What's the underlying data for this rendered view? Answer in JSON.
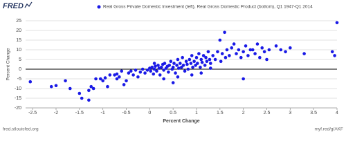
{
  "logo": "FRED",
  "source": "fred.stlouisfed.org",
  "link": "myf.red/g/AKF",
  "chart_data": {
    "type": "scatter",
    "x_label": "Percent Change",
    "y_label": "Percent Change",
    "xlim": [
      -2.65,
      4
    ],
    "xticks": [
      -2.5,
      -2,
      -1.5,
      -1,
      -0.5,
      0,
      0.5,
      1,
      1.5,
      2,
      2.5,
      3,
      3.5,
      4
    ],
    "ylim": [
      -20,
      25
    ],
    "yticks": [
      25,
      20,
      15,
      10,
      5,
      0,
      -5,
      -10,
      -15,
      -20
    ],
    "grid": true,
    "series": [
      {
        "name": "Real Gross Private Domestic Investment (left), Real Gross Domestic Product (bottom), Q1 1947-Q1 2014",
        "color": "#1a1ae6",
        "x": [
          -2.55,
          -2.1,
          -2.0,
          -1.7,
          -1.5,
          -1.45,
          -1.3,
          -1.3,
          -1.25,
          -1.2,
          -1.15,
          -1.05,
          -1.0,
          -0.95,
          -0.9,
          -0.85,
          -0.75,
          -0.7,
          -0.65,
          -0.6,
          -0.55,
          -0.5,
          -0.45,
          -0.4,
          -0.35,
          -0.3,
          -0.25,
          -0.2,
          -0.15,
          -0.1,
          -0.05,
          0,
          0.02,
          0.05,
          0.08,
          0.1,
          0.12,
          0.15,
          0.18,
          0.2,
          0.22,
          0.25,
          0.28,
          0.3,
          0.32,
          0.35,
          0.38,
          0.4,
          0.42,
          0.45,
          0.48,
          0.5,
          0.52,
          0.55,
          0.58,
          0.6,
          0.62,
          0.65,
          0.68,
          0.7,
          0.72,
          0.75,
          0.78,
          0.8,
          0.82,
          0.85,
          0.88,
          0.9,
          0.92,
          0.95,
          0.98,
          1.0,
          1.02,
          1.05,
          1.08,
          1.1,
          1.12,
          1.15,
          1.18,
          1.2,
          1.22,
          1.25,
          1.28,
          1.3,
          1.35,
          1.4,
          1.45,
          1.5,
          1.52,
          1.55,
          1.6,
          1.62,
          1.65,
          1.7,
          1.75,
          1.8,
          1.85,
          1.9,
          1.95,
          2.0,
          2.0,
          2.05,
          2.1,
          2.15,
          2.2,
          2.25,
          2.3,
          2.35,
          2.4,
          2.45,
          2.5,
          2.55,
          2.7,
          2.8,
          2.9,
          3.0,
          3.3,
          3.9,
          3.95,
          4.0,
          -0.7,
          0.3,
          0.5,
          1.1,
          -1.8,
          0.1,
          0.9,
          1.3,
          0.6
        ],
        "values": [
          -6.5,
          -9,
          -8.5,
          -10,
          -12.5,
          -15,
          -16,
          -11,
          -9,
          -10,
          -5,
          -5,
          -6,
          -4.5,
          -9,
          -3,
          -3,
          -2.5,
          -4,
          -1,
          -8,
          -6,
          -2,
          -1,
          -3,
          -0.5,
          -4,
          -1.5,
          0,
          -2,
          -0.5,
          0.5,
          -1,
          1,
          -2.5,
          0,
          1.5,
          -1,
          2,
          0.5,
          -3,
          1,
          2.5,
          -0.5,
          3,
          0.5,
          1.5,
          -1.5,
          2,
          4,
          0,
          1,
          3,
          -2,
          2,
          5,
          0.5,
          3,
          1,
          6,
          2,
          -1,
          4,
          2.5,
          0,
          5,
          3,
          7,
          1,
          4,
          2,
          6,
          3,
          8,
          1,
          5,
          3.5,
          7,
          2,
          6,
          4,
          9,
          5,
          3,
          7,
          5,
          9,
          15,
          4,
          8,
          19,
          6,
          10,
          7,
          11,
          13,
          8,
          10,
          6,
          -5,
          9,
          12,
          7,
          10,
          10,
          8,
          13,
          6,
          11,
          9,
          5,
          10,
          12,
          10,
          9,
          11,
          8,
          9,
          7,
          24,
          -5,
          -5,
          -7,
          -2,
          -6,
          3,
          -3,
          0.5,
          -4
        ]
      }
    ]
  }
}
